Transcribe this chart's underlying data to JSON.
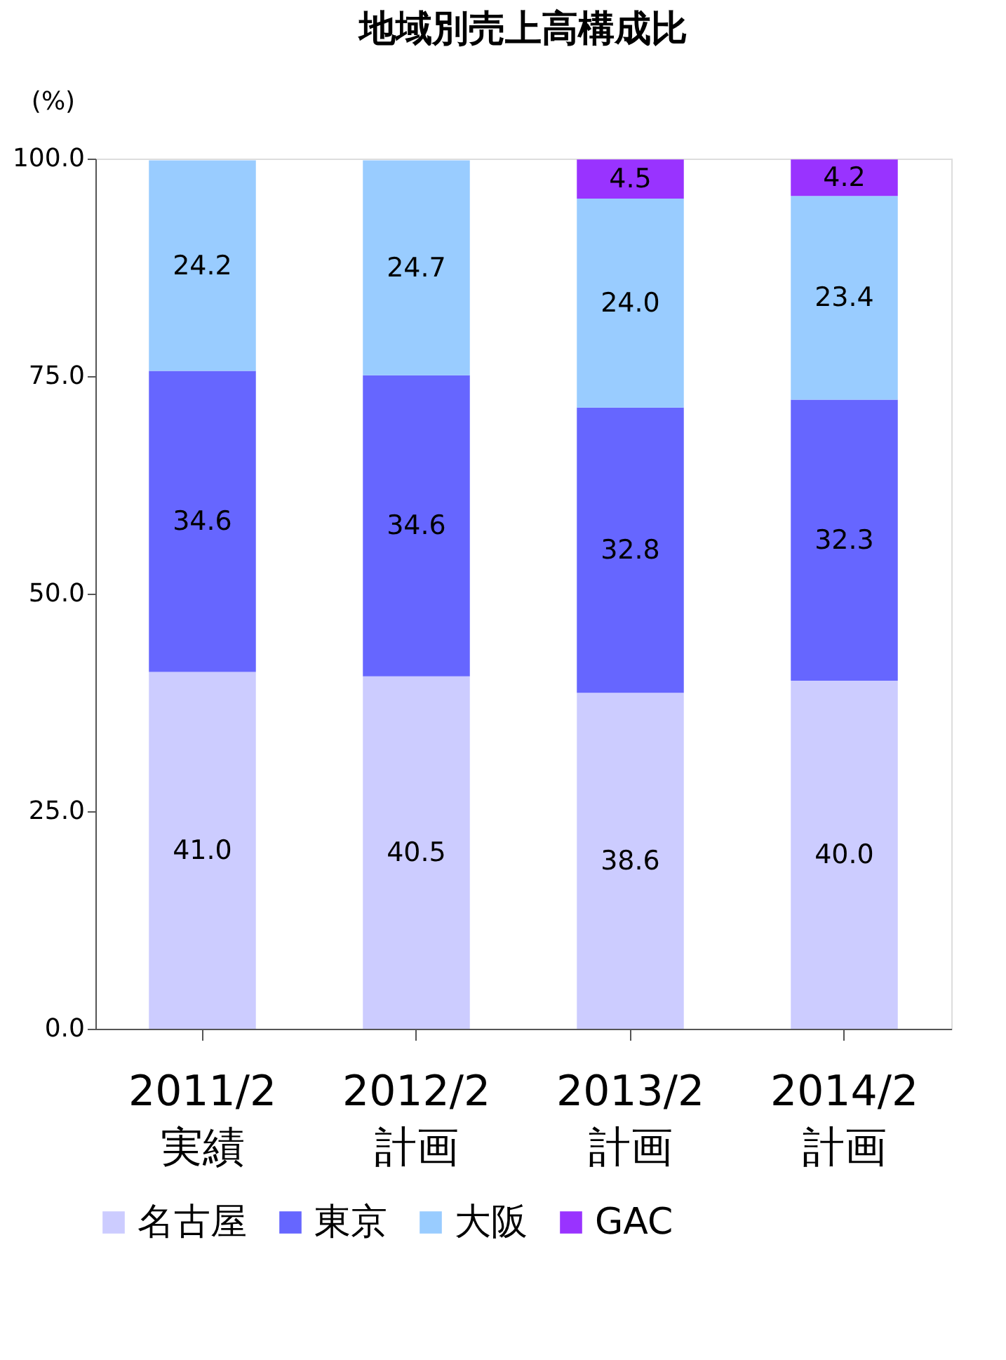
{
  "chart_data": {
    "type": "bar",
    "title": "地域別売上高構成比",
    "ylabel": "(%)",
    "stacked": true,
    "categories": [
      "2011/2\n実績",
      "2012/2\n計画",
      "2013/2\n計画",
      "2014/2\n計画"
    ],
    "series": [
      {
        "name": "名古屋",
        "color": "#ccccff",
        "values": [
          41.0,
          40.5,
          38.6,
          40.0
        ],
        "value_labels": [
          "41.0",
          "40.5",
          "38.6",
          "40.0"
        ]
      },
      {
        "name": "東京",
        "color": "#6666ff",
        "values": [
          34.6,
          34.6,
          32.8,
          32.3
        ],
        "value_labels": [
          "34.6",
          "34.6",
          "32.8",
          "32.3"
        ]
      },
      {
        "name": "大阪",
        "color": "#99ccff",
        "values": [
          24.2,
          24.7,
          24.0,
          23.4
        ],
        "value_labels": [
          "24.2",
          "24.7",
          "24.0",
          "23.4"
        ]
      },
      {
        "name": "GAC",
        "color": "#9933ff",
        "values": [
          null,
          null,
          4.5,
          4.2
        ],
        "value_labels": [
          null,
          null,
          "4.5",
          "4.2"
        ]
      }
    ],
    "ylim": [
      0,
      100
    ],
    "yticks": [
      {
        "value": 0,
        "label": "0.0"
      },
      {
        "value": 25,
        "label": "25.0"
      },
      {
        "value": 50,
        "label": "50.0"
      },
      {
        "value": 75,
        "label": "75.0"
      },
      {
        "value": 100,
        "label": "100.0"
      }
    ],
    "legend": "bottom",
    "grid": false
  }
}
